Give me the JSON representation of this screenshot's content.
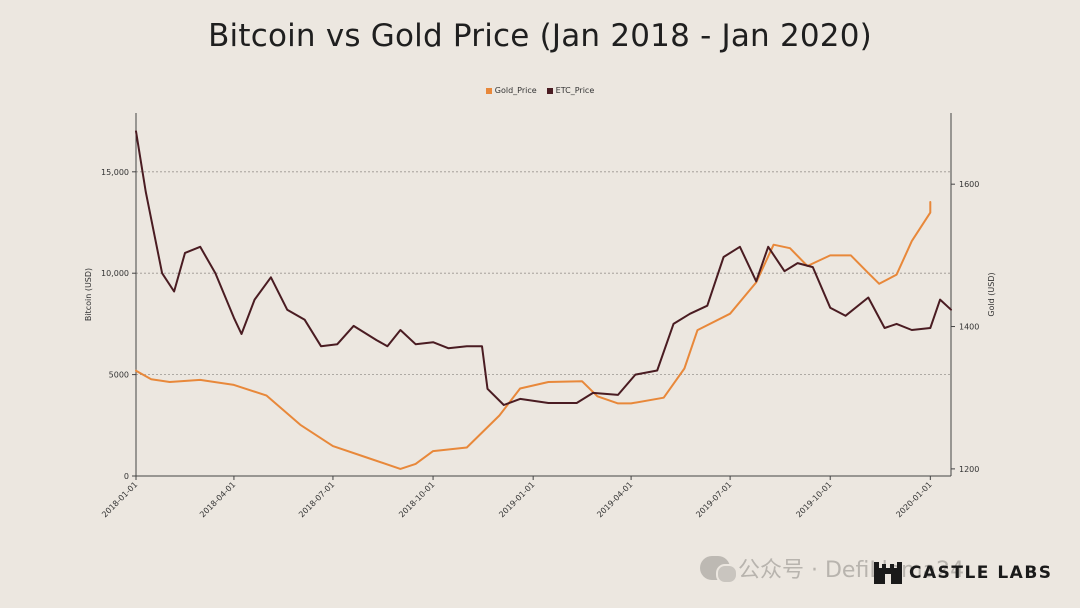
{
  "chart_data": {
    "type": "line",
    "title": "Bitcoin vs Gold Price (Jan 2018 - Jan 2020)",
    "xlabel": "",
    "ylabel_left": "Bitcoin (USD)",
    "ylabel_right": "Gold (USD)",
    "y_left_ticks": [
      "0",
      "5000",
      "10,000",
      "15,000"
    ],
    "y_left_lim": [
      0,
      17900
    ],
    "y_right_ticks": [
      "1200",
      "1400",
      "1600"
    ],
    "y_right_lim": [
      1190,
      1700
    ],
    "x_ticks": [
      "2018-01-01",
      "2018-04-01",
      "2018-07-01",
      "2018-10-01",
      "2019-01-01",
      "2019-04-01",
      "2019-07-01",
      "2019-10-01",
      "2020-01-01"
    ],
    "x_range": [
      "2018-01-01",
      "2020-01-20"
    ],
    "grid": "horizontal dotted",
    "legend_position": "top-center",
    "series": [
      {
        "name": "Gold_Price",
        "color": "#e8883a",
        "axis": "right",
        "points": [
          [
            "2018-01-01",
            1338
          ],
          [
            "2018-01-15",
            1326
          ],
          [
            "2018-02-01",
            1322
          ],
          [
            "2018-03-01",
            1325
          ],
          [
            "2018-04-01",
            1318
          ],
          [
            "2018-05-01",
            1303
          ],
          [
            "2018-06-01",
            1262
          ],
          [
            "2018-07-01",
            1232
          ],
          [
            "2018-08-01",
            1216
          ],
          [
            "2018-09-01",
            1200
          ],
          [
            "2018-09-15",
            1207
          ],
          [
            "2018-10-01",
            1225
          ],
          [
            "2018-11-01",
            1230
          ],
          [
            "2018-12-01",
            1275
          ],
          [
            "2018-12-20",
            1313
          ],
          [
            "2019-01-15",
            1322
          ],
          [
            "2019-02-15",
            1323
          ],
          [
            "2019-03-01",
            1302
          ],
          [
            "2019-03-20",
            1292
          ],
          [
            "2019-04-01",
            1292
          ],
          [
            "2019-05-01",
            1300
          ],
          [
            "2019-05-20",
            1341
          ],
          [
            "2019-06-01",
            1395
          ],
          [
            "2019-07-01",
            1418
          ],
          [
            "2019-07-25",
            1462
          ],
          [
            "2019-08-10",
            1515
          ],
          [
            "2019-08-25",
            1510
          ],
          [
            "2019-09-10",
            1485
          ],
          [
            "2019-10-01",
            1500
          ],
          [
            "2019-10-20",
            1500
          ],
          [
            "2019-11-05",
            1475
          ],
          [
            "2019-11-15",
            1460
          ],
          [
            "2019-12-01",
            1473
          ],
          [
            "2019-12-15",
            1520
          ],
          [
            "2020-01-01",
            1560
          ],
          [
            "2020-01-01",
            1575
          ]
        ]
      },
      {
        "name": "ETC_Price",
        "color": "#4a1c22",
        "axis": "left",
        "points": [
          [
            "2018-01-01",
            17000
          ],
          [
            "2018-01-10",
            14000
          ],
          [
            "2018-01-25",
            10000
          ],
          [
            "2018-02-05",
            9100
          ],
          [
            "2018-02-15",
            11000
          ],
          [
            "2018-03-01",
            11300
          ],
          [
            "2018-03-15",
            10000
          ],
          [
            "2018-04-01",
            7800
          ],
          [
            "2018-04-08",
            7000
          ],
          [
            "2018-04-20",
            8700
          ],
          [
            "2018-05-05",
            9800
          ],
          [
            "2018-05-20",
            8200
          ],
          [
            "2018-06-05",
            7700
          ],
          [
            "2018-06-20",
            6400
          ],
          [
            "2018-07-05",
            6500
          ],
          [
            "2018-07-20",
            7400
          ],
          [
            "2018-08-10",
            6700
          ],
          [
            "2018-08-20",
            6400
          ],
          [
            "2018-09-01",
            7200
          ],
          [
            "2018-09-15",
            6500
          ],
          [
            "2018-10-01",
            6600
          ],
          [
            "2018-10-15",
            6300
          ],
          [
            "2018-11-01",
            6400
          ],
          [
            "2018-11-15",
            6400
          ],
          [
            "2018-11-20",
            4300
          ],
          [
            "2018-12-05",
            3500
          ],
          [
            "2018-12-20",
            3800
          ],
          [
            "2019-01-15",
            3600
          ],
          [
            "2019-02-10",
            3600
          ],
          [
            "2019-02-25",
            4100
          ],
          [
            "2019-03-20",
            4000
          ],
          [
            "2019-04-05",
            5000
          ],
          [
            "2019-04-25",
            5200
          ],
          [
            "2019-05-10",
            7500
          ],
          [
            "2019-05-25",
            8000
          ],
          [
            "2019-06-10",
            8400
          ],
          [
            "2019-06-25",
            10800
          ],
          [
            "2019-07-10",
            11300
          ],
          [
            "2019-07-25",
            9600
          ],
          [
            "2019-08-05",
            11300
          ],
          [
            "2019-08-20",
            10100
          ],
          [
            "2019-09-01",
            10500
          ],
          [
            "2019-09-15",
            10300
          ],
          [
            "2019-10-01",
            8300
          ],
          [
            "2019-10-15",
            7900
          ],
          [
            "2019-11-05",
            8800
          ],
          [
            "2019-11-20",
            7300
          ],
          [
            "2019-12-01",
            7500
          ],
          [
            "2019-12-15",
            7200
          ],
          [
            "2020-01-01",
            7300
          ],
          [
            "2020-01-10",
            8700
          ],
          [
            "2020-01-20",
            8200
          ]
        ]
      }
    ]
  },
  "legend": {
    "gold_label": "Gold_Price",
    "btc_label": "ETC_Price"
  },
  "watermark": {
    "text": "公众号 · DefiLlama24"
  },
  "logo": {
    "text": "CASTLE LABS"
  }
}
